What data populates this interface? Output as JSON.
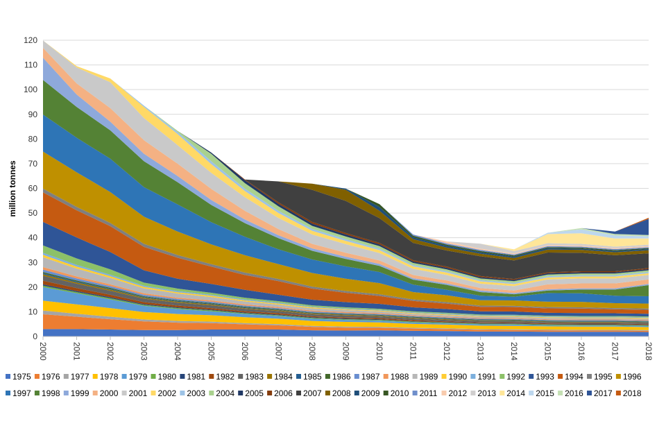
{
  "chart_data": {
    "type": "area",
    "title": "",
    "xlabel": "",
    "ylabel": "million tonnes",
    "ylim": [
      0,
      120
    ],
    "yticks": [
      0,
      10,
      20,
      30,
      40,
      50,
      60,
      70,
      80,
      90,
      100,
      110,
      120
    ],
    "grid": true,
    "legend_position": "bottom",
    "x": [
      "2000",
      "2001",
      "2002",
      "2003",
      "2004",
      "2005",
      "2006",
      "2007",
      "2008",
      "2009",
      "2010",
      "2011",
      "2012",
      "2013",
      "2014",
      "2015",
      "2016",
      "2017",
      "2018"
    ],
    "series": [
      {
        "name": "1975",
        "color": "#4472C4",
        "values": [
          3.0,
          3.0,
          2.8,
          2.6,
          2.6,
          2.8,
          2.8,
          2.8,
          2.5,
          2.4,
          2.5,
          2.3,
          2.2,
          2.0,
          2.0,
          1.9,
          1.9,
          1.9,
          1.8
        ]
      },
      {
        "name": "1976",
        "color": "#ED7D31",
        "values": [
          6.0,
          5.0,
          4.2,
          3.5,
          3.0,
          2.6,
          2.1,
          1.7,
          1.4,
          1.2,
          1.0,
          0.9,
          0.8,
          0.7,
          0.6,
          0.6,
          0.5,
          0.5,
          0.5
        ]
      },
      {
        "name": "1977",
        "color": "#A5A5A5",
        "values": [
          1.5,
          1.2,
          1.0,
          0.8,
          0.7,
          0.6,
          0.5,
          0.5,
          0.4,
          0.4,
          0.4,
          0.3,
          0.3,
          0.3,
          0.3,
          0.3,
          0.3,
          0.3,
          0.3
        ]
      },
      {
        "name": "1978",
        "color": "#FFC000",
        "values": [
          4.0,
          3.8,
          3.5,
          3.0,
          2.8,
          2.6,
          2.4,
          2.2,
          2.0,
          1.9,
          1.8,
          1.6,
          1.5,
          1.4,
          1.4,
          1.3,
          1.3,
          1.3,
          1.2
        ]
      },
      {
        "name": "1979",
        "color": "#5B9BD5",
        "values": [
          5.5,
          4.5,
          3.5,
          2.5,
          2.0,
          1.6,
          1.3,
          1.1,
          0.9,
          0.8,
          0.7,
          0.6,
          0.5,
          0.5,
          0.5,
          0.4,
          0.4,
          0.4,
          0.4
        ]
      },
      {
        "name": "1980",
        "color": "#70AD47",
        "values": [
          0.6,
          0.5,
          0.5,
          0.4,
          0.4,
          0.4,
          0.3,
          0.3,
          0.3,
          0.3,
          0.3,
          0.3,
          0.3,
          0.3,
          0.3,
          0.3,
          0.3,
          0.3,
          0.3
        ]
      },
      {
        "name": "1981",
        "color": "#264478",
        "values": [
          0.5,
          0.4,
          0.4,
          0.3,
          0.3,
          0.3,
          0.3,
          0.3,
          0.3,
          0.3,
          0.3,
          0.2,
          0.2,
          0.2,
          0.2,
          0.2,
          0.2,
          0.2,
          0.2
        ]
      },
      {
        "name": "1982",
        "color": "#9E480E",
        "values": [
          1.5,
          1.2,
          1.0,
          0.8,
          0.7,
          0.6,
          0.5,
          0.5,
          0.4,
          0.4,
          0.4,
          0.4,
          0.3,
          0.3,
          0.3,
          0.3,
          0.3,
          0.3,
          0.3
        ]
      },
      {
        "name": "1983",
        "color": "#636363",
        "values": [
          2.0,
          1.8,
          1.6,
          1.4,
          1.2,
          1.1,
          1.0,
          0.9,
          0.8,
          0.8,
          0.7,
          0.7,
          0.6,
          0.6,
          0.6,
          0.5,
          0.5,
          0.5,
          0.5
        ]
      },
      {
        "name": "1984",
        "color": "#997300",
        "values": [
          0.6,
          0.5,
          0.5,
          0.4,
          0.4,
          0.4,
          0.3,
          0.3,
          0.3,
          0.3,
          0.3,
          0.3,
          0.3,
          0.2,
          0.2,
          0.2,
          0.2,
          0.2,
          0.2
        ]
      },
      {
        "name": "1985",
        "color": "#255E91",
        "values": [
          0.4,
          0.4,
          0.3,
          0.3,
          0.3,
          0.3,
          0.3,
          0.2,
          0.2,
          0.2,
          0.2,
          0.2,
          0.2,
          0.2,
          0.2,
          0.2,
          0.2,
          0.2,
          0.2
        ]
      },
      {
        "name": "1986",
        "color": "#43682B",
        "values": [
          0.5,
          0.4,
          0.4,
          0.3,
          0.3,
          0.3,
          0.3,
          0.3,
          0.2,
          0.2,
          0.2,
          0.2,
          0.2,
          0.2,
          0.2,
          0.2,
          0.2,
          0.2,
          0.2
        ]
      },
      {
        "name": "1987",
        "color": "#698ED0",
        "values": [
          1.0,
          0.8,
          0.7,
          0.6,
          0.5,
          0.5,
          0.4,
          0.4,
          0.4,
          0.3,
          0.3,
          0.3,
          0.3,
          0.3,
          0.3,
          0.3,
          0.3,
          0.3,
          0.3
        ]
      },
      {
        "name": "1988",
        "color": "#F1975A",
        "values": [
          1.0,
          0.8,
          0.7,
          0.6,
          0.5,
          0.5,
          0.5,
          0.4,
          0.4,
          0.4,
          0.4,
          0.3,
          0.3,
          0.3,
          0.3,
          0.3,
          0.3,
          0.3,
          0.3
        ]
      },
      {
        "name": "1989",
        "color": "#B7B7B7",
        "values": [
          4.0,
          3.2,
          2.6,
          2.0,
          1.7,
          1.4,
          1.2,
          1.0,
          0.9,
          0.8,
          0.7,
          0.6,
          0.6,
          0.5,
          0.5,
          0.5,
          0.5,
          0.5,
          0.5
        ]
      },
      {
        "name": "1990",
        "color": "#FFCD33",
        "values": [
          1.0,
          0.8,
          0.7,
          0.6,
          0.5,
          0.5,
          0.4,
          0.4,
          0.4,
          0.3,
          0.3,
          0.3,
          0.3,
          0.3,
          0.3,
          0.3,
          0.3,
          0.3,
          0.3
        ]
      },
      {
        "name": "1991",
        "color": "#7CAFDD",
        "values": [
          0.8,
          0.7,
          0.6,
          0.5,
          0.5,
          0.4,
          0.4,
          0.4,
          0.3,
          0.3,
          0.3,
          0.3,
          0.3,
          0.3,
          0.3,
          0.3,
          0.3,
          0.3,
          0.3
        ]
      },
      {
        "name": "1992",
        "color": "#8CC168",
        "values": [
          3.0,
          2.6,
          2.2,
          1.2,
          1.0,
          0.8,
          0.7,
          0.6,
          0.5,
          0.5,
          0.4,
          0.4,
          0.4,
          0.3,
          0.3,
          0.3,
          0.3,
          0.3,
          0.3
        ]
      },
      {
        "name": "1993",
        "color": "#2F5597",
        "values": [
          9.5,
          8.5,
          7.0,
          5.0,
          4.0,
          3.6,
          3.2,
          2.6,
          2.3,
          2.1,
          2.0,
          1.6,
          1.5,
          1.3,
          1.3,
          1.2,
          1.2,
          1.1,
          1.1
        ]
      },
      {
        "name": "1994",
        "color": "#C55A11",
        "values": [
          12.0,
          11.0,
          10.5,
          9.5,
          8.5,
          7.0,
          6.0,
          5.5,
          4.5,
          3.8,
          3.2,
          2.6,
          2.2,
          1.8,
          1.8,
          1.8,
          1.8,
          1.6,
          1.6
        ]
      },
      {
        "name": "1995",
        "color": "#7F7F7F",
        "values": [
          1.5,
          1.4,
          1.3,
          1.2,
          1.1,
          1.0,
          1.0,
          0.9,
          0.8,
          0.7,
          0.7,
          0.6,
          0.6,
          0.5,
          0.5,
          0.5,
          0.5,
          0.5,
          0.5
        ]
      },
      {
        "name": "1996",
        "color": "#BF9000",
        "values": [
          15.0,
          14.0,
          12.5,
          11.0,
          9.5,
          8.0,
          7.0,
          6.0,
          5.5,
          5.0,
          4.5,
          3.0,
          2.8,
          2.2,
          2.2,
          2.2,
          2.2,
          2.0,
          2.0
        ]
      },
      {
        "name": "1997",
        "color": "#2E75B6",
        "values": [
          15.0,
          14.0,
          13.5,
          12.0,
          11.0,
          9.0,
          7.5,
          6.0,
          5.5,
          5.0,
          4.5,
          3.0,
          2.2,
          1.8,
          1.5,
          3.5,
          3.5,
          3.0,
          3.0
        ]
      },
      {
        "name": "1998",
        "color": "#548235",
        "values": [
          14.0,
          12.5,
          11.5,
          10.5,
          9.0,
          7.0,
          5.5,
          4.5,
          3.5,
          3.0,
          2.5,
          2.0,
          2.0,
          1.5,
          1.0,
          1.0,
          1.5,
          2.5,
          4.5
        ]
      },
      {
        "name": "1999",
        "color": "#8EA9DB",
        "values": [
          9.0,
          5.0,
          3.5,
          3.0,
          2.5,
          2.0,
          1.5,
          1.2,
          1.0,
          0.9,
          0.8,
          0.6,
          0.6,
          0.6,
          0.5,
          0.5,
          0.5,
          0.5,
          0.5
        ]
      },
      {
        "name": "2000",
        "color": "#F4B183",
        "values": [
          4.0,
          4.5,
          5.5,
          5.5,
          5.0,
          4.5,
          3.5,
          2.5,
          1.8,
          1.6,
          1.4,
          1.3,
          1.2,
          1.0,
          1.0,
          2.0,
          2.0,
          2.0,
          1.8
        ]
      },
      {
        "name": "2001",
        "color": "#C9C9C9",
        "values": [
          3.0,
          6.5,
          10.5,
          9.0,
          7.5,
          6.5,
          5.5,
          4.5,
          3.8,
          3.5,
          3.0,
          2.5,
          2.2,
          1.8,
          1.8,
          2.0,
          2.0,
          2.0,
          1.8
        ]
      },
      {
        "name": "2002",
        "color": "#FFD966",
        "values": [
          0.0,
          0.5,
          1.5,
          4.5,
          4.5,
          3.5,
          2.5,
          2.0,
          1.5,
          1.3,
          1.2,
          1.0,
          1.0,
          0.9,
          0.8,
          0.8,
          0.8,
          0.8,
          0.7
        ]
      },
      {
        "name": "2003",
        "color": "#9DC3E6",
        "values": [
          0.0,
          0.0,
          0.0,
          0.5,
          0.8,
          1.2,
          1.0,
          0.9,
          0.8,
          0.7,
          0.6,
          0.5,
          0.5,
          0.5,
          0.5,
          0.5,
          0.5,
          0.5,
          0.5
        ]
      },
      {
        "name": "2004",
        "color": "#A9D18E",
        "values": [
          0.0,
          0.0,
          0.0,
          0.0,
          0.5,
          3.0,
          2.2,
          1.8,
          1.2,
          1.1,
          1.0,
          0.9,
          0.8,
          0.7,
          0.7,
          0.7,
          0.7,
          0.7,
          0.7
        ]
      },
      {
        "name": "2005",
        "color": "#203864",
        "values": [
          0.0,
          0.0,
          0.0,
          0.0,
          0.0,
          0.5,
          1.2,
          1.0,
          0.9,
          0.8,
          0.7,
          0.6,
          0.6,
          0.5,
          0.5,
          0.5,
          0.5,
          0.5,
          0.5
        ]
      },
      {
        "name": "2006",
        "color": "#843C0C",
        "values": [
          0.0,
          0.0,
          0.0,
          0.0,
          0.0,
          0.0,
          0.3,
          0.6,
          0.7,
          0.6,
          0.6,
          0.5,
          0.5,
          0.5,
          0.4,
          0.4,
          0.4,
          0.4,
          0.4
        ]
      },
      {
        "name": "2007",
        "color": "#404040",
        "values": [
          0.0,
          0.0,
          0.0,
          0.0,
          0.0,
          0.0,
          0.0,
          8.5,
          13.0,
          13.0,
          10.0,
          7.0,
          6.5,
          8.0,
          7.5,
          8.0,
          7.5,
          6.5,
          6.0
        ]
      },
      {
        "name": "2008",
        "color": "#806000",
        "values": [
          0.0,
          0.0,
          0.0,
          0.0,
          0.0,
          0.0,
          0.0,
          0.0,
          2.5,
          4.5,
          3.0,
          1.5,
          1.2,
          1.0,
          1.0,
          1.2,
          1.2,
          1.2,
          1.2
        ]
      },
      {
        "name": "2009",
        "color": "#1F4E79",
        "values": [
          0.0,
          0.0,
          0.0,
          0.0,
          0.0,
          0.0,
          0.0,
          0.0,
          0.0,
          0.5,
          1.5,
          0.8,
          0.7,
          0.6,
          0.6,
          0.6,
          0.5,
          0.5,
          0.5
        ]
      },
      {
        "name": "2010",
        "color": "#375623",
        "values": [
          0.0,
          0.0,
          0.0,
          0.0,
          0.0,
          0.0,
          0.0,
          0.0,
          0.0,
          0.0,
          1.2,
          0.6,
          0.5,
          0.5,
          0.4,
          0.4,
          0.4,
          0.4,
          0.4
        ]
      },
      {
        "name": "2011",
        "color": "#6F8FCB",
        "values": [
          0.0,
          0.0,
          0.0,
          0.0,
          0.0,
          0.0,
          0.0,
          0.0,
          0.0,
          0.0,
          0.0,
          0.5,
          0.5,
          0.5,
          0.4,
          0.4,
          0.4,
          0.4,
          0.4
        ]
      },
      {
        "name": "2012",
        "color": "#F8CBAD",
        "values": [
          0.0,
          0.0,
          0.0,
          0.0,
          0.0,
          0.0,
          0.0,
          0.0,
          0.0,
          0.0,
          0.0,
          0.0,
          0.8,
          0.5,
          0.4,
          0.4,
          0.4,
          0.4,
          0.4
        ]
      },
      {
        "name": "2013",
        "color": "#D0CECE",
        "values": [
          0.0,
          0.0,
          0.0,
          0.0,
          0.0,
          0.0,
          0.0,
          0.0,
          0.0,
          0.0,
          0.0,
          0.0,
          0.0,
          2.0,
          1.0,
          0.8,
          0.7,
          0.6,
          0.6
        ]
      },
      {
        "name": "2014",
        "color": "#FFE699",
        "values": [
          0.0,
          0.0,
          0.0,
          0.0,
          0.0,
          0.0,
          0.0,
          0.0,
          0.0,
          0.0,
          0.0,
          0.0,
          0.0,
          0.0,
          0.7,
          3.7,
          4.3,
          3.3,
          2.5
        ]
      },
      {
        "name": "2015",
        "color": "#BDD7EE",
        "values": [
          0.0,
          0.0,
          0.0,
          0.0,
          0.0,
          0.0,
          0.0,
          0.0,
          0.0,
          0.0,
          0.0,
          0.0,
          0.0,
          0.0,
          0.0,
          0.5,
          1.6,
          1.2,
          0.9
        ]
      },
      {
        "name": "2016",
        "color": "#C5E0B4",
        "values": [
          0.0,
          0.0,
          0.0,
          0.0,
          0.0,
          0.0,
          0.0,
          0.0,
          0.0,
          0.0,
          0.0,
          0.0,
          0.0,
          0.0,
          0.0,
          0.0,
          0.5,
          0.6,
          0.5
        ]
      },
      {
        "name": "2017",
        "color": "#2F5496",
        "values": [
          0.0,
          0.0,
          0.0,
          0.0,
          0.0,
          0.0,
          0.0,
          0.0,
          0.0,
          0.0,
          0.0,
          0.0,
          0.0,
          0.0,
          0.0,
          0.0,
          0.0,
          1.0,
          6.5
        ]
      },
      {
        "name": "2018",
        "color": "#C55A11",
        "values": [
          0.0,
          0.0,
          0.0,
          0.0,
          0.0,
          0.0,
          0.0,
          0.0,
          0.0,
          0.0,
          0.0,
          0.0,
          0.0,
          0.0,
          0.0,
          0.0,
          0.0,
          0.0,
          0.5
        ]
      }
    ]
  }
}
